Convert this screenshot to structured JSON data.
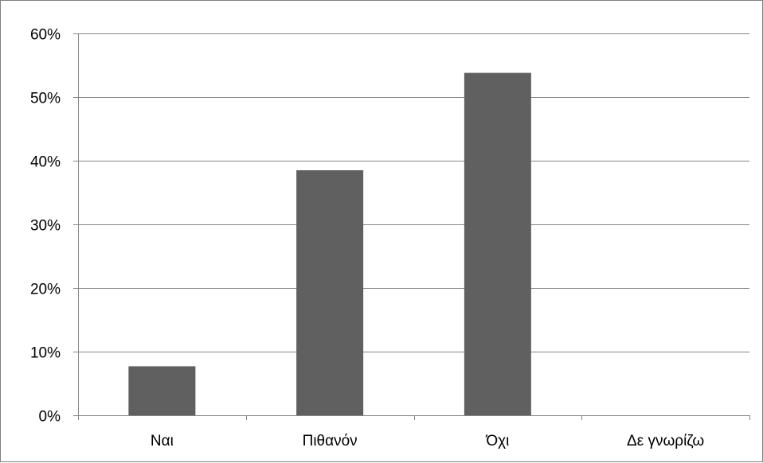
{
  "chart_data": {
    "type": "bar",
    "categories": [
      "Ναι",
      "Πιθανόν",
      "Όχι",
      "Δε γνωρίζω"
    ],
    "values": [
      7.7,
      38.5,
      53.8,
      0
    ],
    "ylim": [
      0,
      60
    ],
    "yticks": [
      0,
      10,
      20,
      30,
      40,
      50,
      60
    ],
    "ytick_labels": [
      "0%",
      "10%",
      "20%",
      "30%",
      "40%",
      "50%",
      "60%"
    ],
    "grid": true,
    "legend": "none",
    "bar_color": "#606060",
    "grid_color": "#868686",
    "title": "",
    "xlabel": "",
    "ylabel": ""
  }
}
